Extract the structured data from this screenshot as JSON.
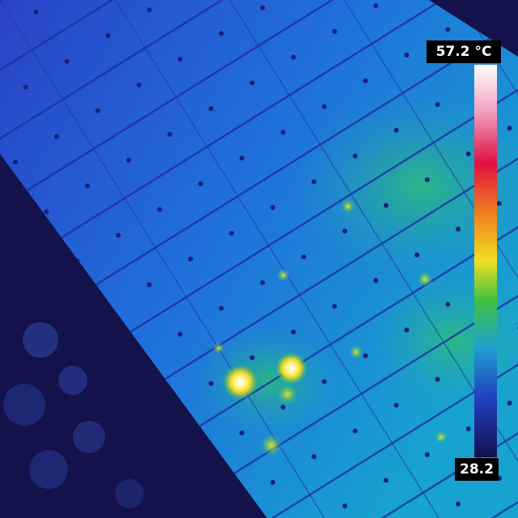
{
  "scale": {
    "max_label": "57.2 °C",
    "min_label": "28.2"
  }
}
